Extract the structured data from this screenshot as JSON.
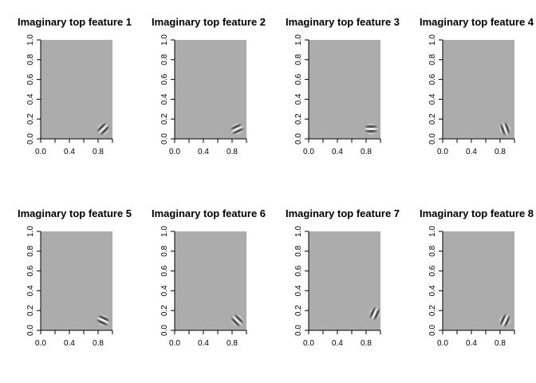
{
  "chart_data": [
    {
      "type": "heatmap",
      "title": "Imaginary top feature 1",
      "xlim": [
        0,
        1
      ],
      "ylim": [
        0,
        1
      ],
      "x_ticks": [
        "0.0",
        "0.4",
        "0.8"
      ],
      "y_ticks": [
        "0.0",
        "0.2",
        "0.4",
        "0.6",
        "0.8",
        "1.0"
      ],
      "background": "#acacac",
      "blob": {
        "x": 0.87,
        "y": 0.1,
        "orientation_deg": 45
      }
    },
    {
      "type": "heatmap",
      "title": "Imaginary top feature 2",
      "xlim": [
        0,
        1
      ],
      "ylim": [
        0,
        1
      ],
      "x_ticks": [
        "0.0",
        "0.4",
        "0.8"
      ],
      "y_ticks": [
        "0.0",
        "0.2",
        "0.4",
        "0.6",
        "0.8",
        "1.0"
      ],
      "background": "#acacac",
      "blob": {
        "x": 0.87,
        "y": 0.1,
        "orientation_deg": 25
      }
    },
    {
      "type": "heatmap",
      "title": "Imaginary top feature 3",
      "xlim": [
        0,
        1
      ],
      "ylim": [
        0,
        1
      ],
      "x_ticks": [
        "0.0",
        "0.4",
        "0.8"
      ],
      "y_ticks": [
        "0.0",
        "0.2",
        "0.4",
        "0.6",
        "0.8",
        "1.0"
      ],
      "background": "#acacac",
      "blob": {
        "x": 0.87,
        "y": 0.1,
        "orientation_deg": 0
      }
    },
    {
      "type": "heatmap",
      "title": "Imaginary top feature 4",
      "xlim": [
        0,
        1
      ],
      "ylim": [
        0,
        1
      ],
      "x_ticks": [
        "0.0",
        "0.4",
        "0.8"
      ],
      "y_ticks": [
        "0.0",
        "0.2",
        "0.4",
        "0.6",
        "0.8",
        "1.0"
      ],
      "background": "#acacac",
      "blob": {
        "x": 0.87,
        "y": 0.1,
        "orientation_deg": 110
      }
    },
    {
      "type": "heatmap",
      "title": "Imaginary top feature 5",
      "xlim": [
        0,
        1
      ],
      "ylim": [
        0,
        1
      ],
      "x_ticks": [
        "0.0",
        "0.4",
        "0.8"
      ],
      "y_ticks": [
        "0.0",
        "0.2",
        "0.4",
        "0.6",
        "0.8",
        "1.0"
      ],
      "background": "#acacac",
      "blob": {
        "x": 0.87,
        "y": 0.1,
        "orientation_deg": -25
      }
    },
    {
      "type": "heatmap",
      "title": "Imaginary top feature 6",
      "xlim": [
        0,
        1
      ],
      "ylim": [
        0,
        1
      ],
      "x_ticks": [
        "0.0",
        "0.4",
        "0.8"
      ],
      "y_ticks": [
        "0.0",
        "0.2",
        "0.4",
        "0.6",
        "0.8",
        "1.0"
      ],
      "background": "#acacac",
      "blob": {
        "x": 0.87,
        "y": 0.1,
        "orientation_deg": -45
      }
    },
    {
      "type": "heatmap",
      "title": "Imaginary top feature 7",
      "xlim": [
        0,
        1
      ],
      "ylim": [
        0,
        1
      ],
      "x_ticks": [
        "0.0",
        "0.4",
        "0.8"
      ],
      "y_ticks": [
        "0.0",
        "0.2",
        "0.4",
        "0.6",
        "0.8",
        "1.0"
      ],
      "background": "#acacac",
      "blob": {
        "x": 0.92,
        "y": 0.17,
        "orientation_deg": 65
      }
    },
    {
      "type": "heatmap",
      "title": "Imaginary top feature 8",
      "xlim": [
        0,
        1
      ],
      "ylim": [
        0,
        1
      ],
      "x_ticks": [
        "0.0",
        "0.4",
        "0.8"
      ],
      "y_ticks": [
        "0.0",
        "0.2",
        "0.4",
        "0.6",
        "0.8",
        "1.0"
      ],
      "background": "#acacac",
      "blob": {
        "x": 0.87,
        "y": 0.1,
        "orientation_deg": 65
      }
    }
  ]
}
